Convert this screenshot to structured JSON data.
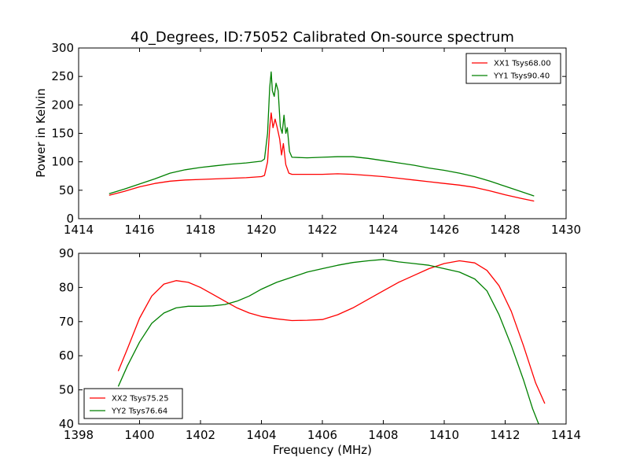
{
  "figure": {
    "title": "40_Degrees, ID:75052 Calibrated On-source spectrum",
    "xlabel": "Frequency (MHz)",
    "ylabel": "Power in Kelvin"
  },
  "chart_data": [
    {
      "type": "line",
      "xlim": [
        1414,
        1430
      ],
      "ylim": [
        0,
        300
      ],
      "xticks": [
        1414,
        1416,
        1418,
        1420,
        1422,
        1424,
        1426,
        1428,
        1430
      ],
      "yticks": [
        0,
        50,
        100,
        150,
        200,
        250,
        300
      ],
      "grid": false,
      "legend_position": "top-right",
      "series": [
        {
          "name": "XX1 Tsys68.00",
          "color": "#ff0000",
          "points": [
            [
              1415.0,
              41
            ],
            [
              1415.5,
              48
            ],
            [
              1416.0,
              56
            ],
            [
              1416.5,
              62
            ],
            [
              1417.0,
              66
            ],
            [
              1417.5,
              68
            ],
            [
              1418.0,
              69
            ],
            [
              1418.5,
              70
            ],
            [
              1419.0,
              71
            ],
            [
              1419.5,
              72
            ],
            [
              1420.0,
              74
            ],
            [
              1420.1,
              76
            ],
            [
              1420.2,
              100
            ],
            [
              1420.27,
              160
            ],
            [
              1420.32,
              186
            ],
            [
              1420.38,
              160
            ],
            [
              1420.45,
              175
            ],
            [
              1420.52,
              160
            ],
            [
              1420.6,
              140
            ],
            [
              1420.66,
              112
            ],
            [
              1420.72,
              132
            ],
            [
              1420.8,
              95
            ],
            [
              1420.9,
              80
            ],
            [
              1421.0,
              78
            ],
            [
              1421.5,
              78
            ],
            [
              1422.0,
              78
            ],
            [
              1422.5,
              79
            ],
            [
              1423.0,
              78
            ],
            [
              1423.5,
              76
            ],
            [
              1424.0,
              74
            ],
            [
              1424.5,
              71
            ],
            [
              1425.0,
              68
            ],
            [
              1425.5,
              65
            ],
            [
              1426.0,
              62
            ],
            [
              1426.5,
              59
            ],
            [
              1427.0,
              55
            ],
            [
              1427.5,
              49
            ],
            [
              1428.0,
              42
            ],
            [
              1428.5,
              36
            ],
            [
              1428.95,
              31
            ]
          ]
        },
        {
          "name": "YY1 Tsys90.40",
          "color": "#008000",
          "points": [
            [
              1415.0,
              44
            ],
            [
              1415.5,
              52
            ],
            [
              1416.0,
              61
            ],
            [
              1416.5,
              70
            ],
            [
              1417.0,
              80
            ],
            [
              1417.5,
              86
            ],
            [
              1418.0,
              90
            ],
            [
              1418.5,
              93
            ],
            [
              1419.0,
              96
            ],
            [
              1419.5,
              98
            ],
            [
              1420.0,
              101
            ],
            [
              1420.1,
              105
            ],
            [
              1420.2,
              150
            ],
            [
              1420.27,
              230
            ],
            [
              1420.32,
              258
            ],
            [
              1420.36,
              225
            ],
            [
              1420.42,
              215
            ],
            [
              1420.48,
              238
            ],
            [
              1420.55,
              225
            ],
            [
              1420.62,
              162
            ],
            [
              1420.68,
              150
            ],
            [
              1420.74,
              182
            ],
            [
              1420.8,
              150
            ],
            [
              1420.85,
              160
            ],
            [
              1420.92,
              118
            ],
            [
              1421.0,
              108
            ],
            [
              1421.5,
              107
            ],
            [
              1422.0,
              108
            ],
            [
              1422.5,
              109
            ],
            [
              1423.0,
              109
            ],
            [
              1423.5,
              106
            ],
            [
              1424.0,
              102
            ],
            [
              1424.5,
              98
            ],
            [
              1425.0,
              94
            ],
            [
              1425.5,
              89
            ],
            [
              1426.0,
              85
            ],
            [
              1426.5,
              80
            ],
            [
              1427.0,
              74
            ],
            [
              1427.5,
              66
            ],
            [
              1428.0,
              57
            ],
            [
              1428.5,
              48
            ],
            [
              1428.95,
              40
            ]
          ]
        }
      ]
    },
    {
      "type": "line",
      "xlim": [
        1398,
        1414
      ],
      "ylim": [
        40,
        90
      ],
      "xticks": [
        1398,
        1400,
        1402,
        1404,
        1406,
        1408,
        1410,
        1412,
        1414
      ],
      "yticks": [
        40,
        50,
        60,
        70,
        80,
        90
      ],
      "grid": false,
      "legend_position": "bottom-left",
      "series": [
        {
          "name": "XX2 Tsys75.25",
          "color": "#ff0000",
          "points": [
            [
              1399.3,
              55.5
            ],
            [
              1399.6,
              62
            ],
            [
              1400.0,
              71
            ],
            [
              1400.4,
              77.5
            ],
            [
              1400.8,
              81
            ],
            [
              1401.2,
              82
            ],
            [
              1401.6,
              81.5
            ],
            [
              1402.0,
              80
            ],
            [
              1402.4,
              78
            ],
            [
              1402.8,
              76
            ],
            [
              1403.2,
              74
            ],
            [
              1403.6,
              72.5
            ],
            [
              1404.0,
              71.5
            ],
            [
              1404.5,
              70.8
            ],
            [
              1405.0,
              70.3
            ],
            [
              1405.5,
              70.4
            ],
            [
              1406.0,
              70.6
            ],
            [
              1406.5,
              72
            ],
            [
              1407.0,
              74
            ],
            [
              1407.5,
              76.5
            ],
            [
              1408.0,
              79
            ],
            [
              1408.5,
              81.5
            ],
            [
              1409.0,
              83.5
            ],
            [
              1409.5,
              85.5
            ],
            [
              1410.0,
              87
            ],
            [
              1410.5,
              87.8
            ],
            [
              1411.0,
              87.2
            ],
            [
              1411.4,
              85
            ],
            [
              1411.8,
              80.5
            ],
            [
              1412.2,
              73
            ],
            [
              1412.6,
              63
            ],
            [
              1413.0,
              52
            ],
            [
              1413.3,
              46
            ]
          ]
        },
        {
          "name": "YY2 Tsys76.64",
          "color": "#008000",
          "points": [
            [
              1399.3,
              51
            ],
            [
              1399.6,
              57
            ],
            [
              1400.0,
              64
            ],
            [
              1400.4,
              69.5
            ],
            [
              1400.8,
              72.5
            ],
            [
              1401.2,
              74
            ],
            [
              1401.6,
              74.5
            ],
            [
              1402.0,
              74.5
            ],
            [
              1402.4,
              74.6
            ],
            [
              1402.8,
              75
            ],
            [
              1403.2,
              76
            ],
            [
              1403.6,
              77.5
            ],
            [
              1404.0,
              79.5
            ],
            [
              1404.5,
              81.5
            ],
            [
              1405.0,
              83
            ],
            [
              1405.5,
              84.5
            ],
            [
              1406.0,
              85.5
            ],
            [
              1406.5,
              86.5
            ],
            [
              1407.0,
              87.3
            ],
            [
              1407.5,
              87.8
            ],
            [
              1408.0,
              88.2
            ],
            [
              1408.5,
              87.5
            ],
            [
              1409.0,
              87
            ],
            [
              1409.5,
              86.5
            ],
            [
              1410.0,
              85.5
            ],
            [
              1410.5,
              84.5
            ],
            [
              1411.0,
              82.5
            ],
            [
              1411.4,
              79
            ],
            [
              1411.8,
              72
            ],
            [
              1412.2,
              63
            ],
            [
              1412.6,
              53
            ],
            [
              1412.9,
              44.5
            ],
            [
              1413.1,
              40
            ]
          ]
        }
      ]
    }
  ]
}
